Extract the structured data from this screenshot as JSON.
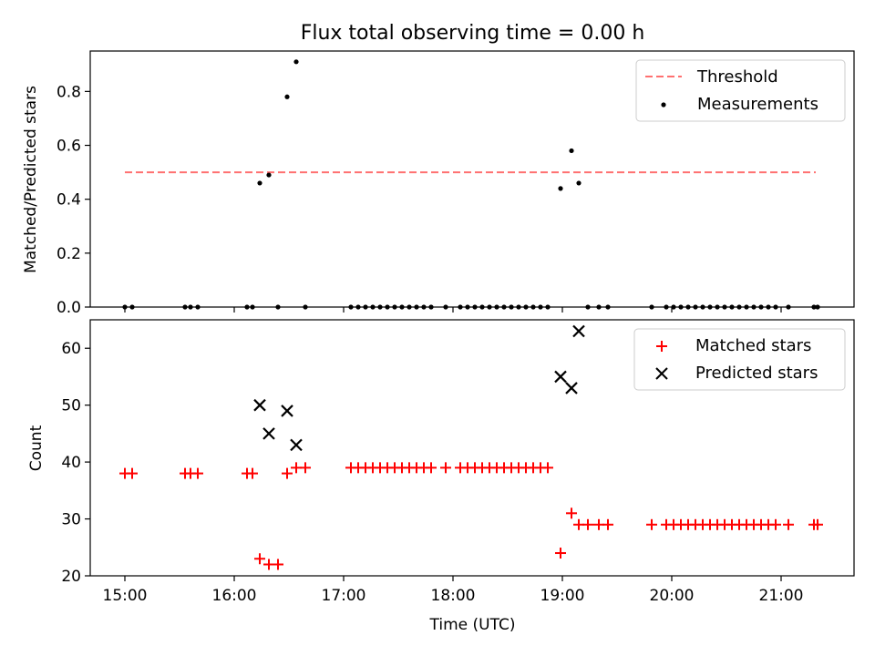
{
  "chart_data": [
    {
      "type": "scatter",
      "title": "Flux total observing time = 0.00 h",
      "xlabel": "",
      "ylabel": "Matched/Predicted stars",
      "xlim": [
        "14:41",
        "21:40"
      ],
      "ylim": [
        0,
        0.95
      ],
      "yticks": [
        0.0,
        0.2,
        0.4,
        0.6,
        0.8
      ],
      "ytick_labels": [
        "0.0",
        "0.2",
        "0.4",
        "0.6",
        "0.8"
      ],
      "legend": {
        "position": "top-right",
        "entries": [
          "Threshold",
          "Measurements"
        ]
      },
      "threshold": {
        "name": "Threshold",
        "value": 0.5,
        "x_start": "15:00",
        "x_end": "21:19",
        "color": "#ff7070",
        "style": "dashed"
      },
      "series": [
        {
          "name": "Measurements",
          "color": "#000000",
          "marker": "dot",
          "points": [
            [
              "15:00",
              0
            ],
            [
              "15:04",
              0
            ],
            [
              "15:33",
              0
            ],
            [
              "15:36",
              0
            ],
            [
              "15:40",
              0
            ],
            [
              "16:07",
              0
            ],
            [
              "16:10",
              0
            ],
            [
              "16:14",
              0.46
            ],
            [
              "16:19",
              0.49
            ],
            [
              "16:24",
              0
            ],
            [
              "16:29",
              0.78
            ],
            [
              "16:34",
              0.91
            ],
            [
              "16:39",
              0
            ],
            [
              "17:04",
              0
            ],
            [
              "17:08",
              0
            ],
            [
              "17:12",
              0
            ],
            [
              "17:16",
              0
            ],
            [
              "17:20",
              0
            ],
            [
              "17:24",
              0
            ],
            [
              "17:28",
              0
            ],
            [
              "17:32",
              0
            ],
            [
              "17:36",
              0
            ],
            [
              "17:40",
              0
            ],
            [
              "17:44",
              0
            ],
            [
              "17:48",
              0
            ],
            [
              "17:56",
              0
            ],
            [
              "18:04",
              0
            ],
            [
              "18:08",
              0
            ],
            [
              "18:12",
              0
            ],
            [
              "18:16",
              0
            ],
            [
              "18:20",
              0
            ],
            [
              "18:24",
              0
            ],
            [
              "18:28",
              0
            ],
            [
              "18:32",
              0
            ],
            [
              "18:36",
              0
            ],
            [
              "18:40",
              0
            ],
            [
              "18:44",
              0
            ],
            [
              "18:48",
              0
            ],
            [
              "18:52",
              0
            ],
            [
              "18:59",
              0.44
            ],
            [
              "19:05",
              0.58
            ],
            [
              "19:09",
              0.46
            ],
            [
              "19:14",
              0
            ],
            [
              "19:20",
              0
            ],
            [
              "19:25",
              0
            ],
            [
              "19:49",
              0
            ],
            [
              "19:57",
              0
            ],
            [
              "20:01",
              0
            ],
            [
              "20:05",
              0
            ],
            [
              "20:09",
              0
            ],
            [
              "20:13",
              0
            ],
            [
              "20:17",
              0
            ],
            [
              "20:21",
              0
            ],
            [
              "20:25",
              0
            ],
            [
              "20:29",
              0
            ],
            [
              "20:33",
              0
            ],
            [
              "20:37",
              0
            ],
            [
              "20:41",
              0
            ],
            [
              "20:45",
              0
            ],
            [
              "20:49",
              0
            ],
            [
              "20:53",
              0
            ],
            [
              "20:57",
              0
            ],
            [
              "21:04",
              0
            ],
            [
              "21:18",
              0
            ],
            [
              "21:20",
              0
            ]
          ]
        }
      ]
    },
    {
      "type": "scatter",
      "title": "",
      "xlabel": "Time (UTC)",
      "ylabel": "Count",
      "xlim": [
        "14:41",
        "21:40"
      ],
      "ylim": [
        20,
        65
      ],
      "yticks": [
        20,
        30,
        40,
        50,
        60
      ],
      "ytick_labels": [
        "20",
        "30",
        "40",
        "50",
        "60"
      ],
      "xticks": [
        "15:00",
        "16:00",
        "17:00",
        "18:00",
        "19:00",
        "20:00",
        "21:00"
      ],
      "xtick_labels": [
        "15:00",
        "16:00",
        "17:00",
        "18:00",
        "19:00",
        "20:00",
        "21:00"
      ],
      "legend": {
        "position": "top-right",
        "entries": [
          "Matched stars",
          "Predicted stars"
        ]
      },
      "series": [
        {
          "name": "Matched stars",
          "color": "#ff0000",
          "marker": "plus",
          "points": [
            [
              "15:00",
              38
            ],
            [
              "15:04",
              38
            ],
            [
              "15:33",
              38
            ],
            [
              "15:36",
              38
            ],
            [
              "15:40",
              38
            ],
            [
              "16:07",
              38
            ],
            [
              "16:10",
              38
            ],
            [
              "16:14",
              23
            ],
            [
              "16:19",
              22
            ],
            [
              "16:24",
              22
            ],
            [
              "16:29",
              38
            ],
            [
              "16:34",
              39
            ],
            [
              "16:39",
              39
            ],
            [
              "17:04",
              39
            ],
            [
              "17:08",
              39
            ],
            [
              "17:12",
              39
            ],
            [
              "17:16",
              39
            ],
            [
              "17:20",
              39
            ],
            [
              "17:24",
              39
            ],
            [
              "17:28",
              39
            ],
            [
              "17:32",
              39
            ],
            [
              "17:36",
              39
            ],
            [
              "17:40",
              39
            ],
            [
              "17:44",
              39
            ],
            [
              "17:48",
              39
            ],
            [
              "17:56",
              39
            ],
            [
              "18:04",
              39
            ],
            [
              "18:08",
              39
            ],
            [
              "18:12",
              39
            ],
            [
              "18:16",
              39
            ],
            [
              "18:20",
              39
            ],
            [
              "18:24",
              39
            ],
            [
              "18:28",
              39
            ],
            [
              "18:32",
              39
            ],
            [
              "18:36",
              39
            ],
            [
              "18:40",
              39
            ],
            [
              "18:44",
              39
            ],
            [
              "18:48",
              39
            ],
            [
              "18:52",
              39
            ],
            [
              "18:59",
              24
            ],
            [
              "19:05",
              31
            ],
            [
              "19:09",
              29
            ],
            [
              "19:14",
              29
            ],
            [
              "19:20",
              29
            ],
            [
              "19:25",
              29
            ],
            [
              "19:49",
              29
            ],
            [
              "19:57",
              29
            ],
            [
              "20:01",
              29
            ],
            [
              "20:05",
              29
            ],
            [
              "20:09",
              29
            ],
            [
              "20:13",
              29
            ],
            [
              "20:17",
              29
            ],
            [
              "20:21",
              29
            ],
            [
              "20:25",
              29
            ],
            [
              "20:29",
              29
            ],
            [
              "20:33",
              29
            ],
            [
              "20:37",
              29
            ],
            [
              "20:41",
              29
            ],
            [
              "20:45",
              29
            ],
            [
              "20:49",
              29
            ],
            [
              "20:53",
              29
            ],
            [
              "20:57",
              29
            ],
            [
              "21:04",
              29
            ],
            [
              "21:18",
              29
            ],
            [
              "21:20",
              29
            ]
          ]
        },
        {
          "name": "Predicted stars",
          "color": "#000000",
          "marker": "x",
          "points": [
            [
              "16:14",
              50
            ],
            [
              "16:19",
              45
            ],
            [
              "16:29",
              49
            ],
            [
              "16:34",
              43
            ],
            [
              "18:59",
              55
            ],
            [
              "19:05",
              53
            ],
            [
              "19:09",
              63
            ]
          ]
        }
      ]
    }
  ]
}
